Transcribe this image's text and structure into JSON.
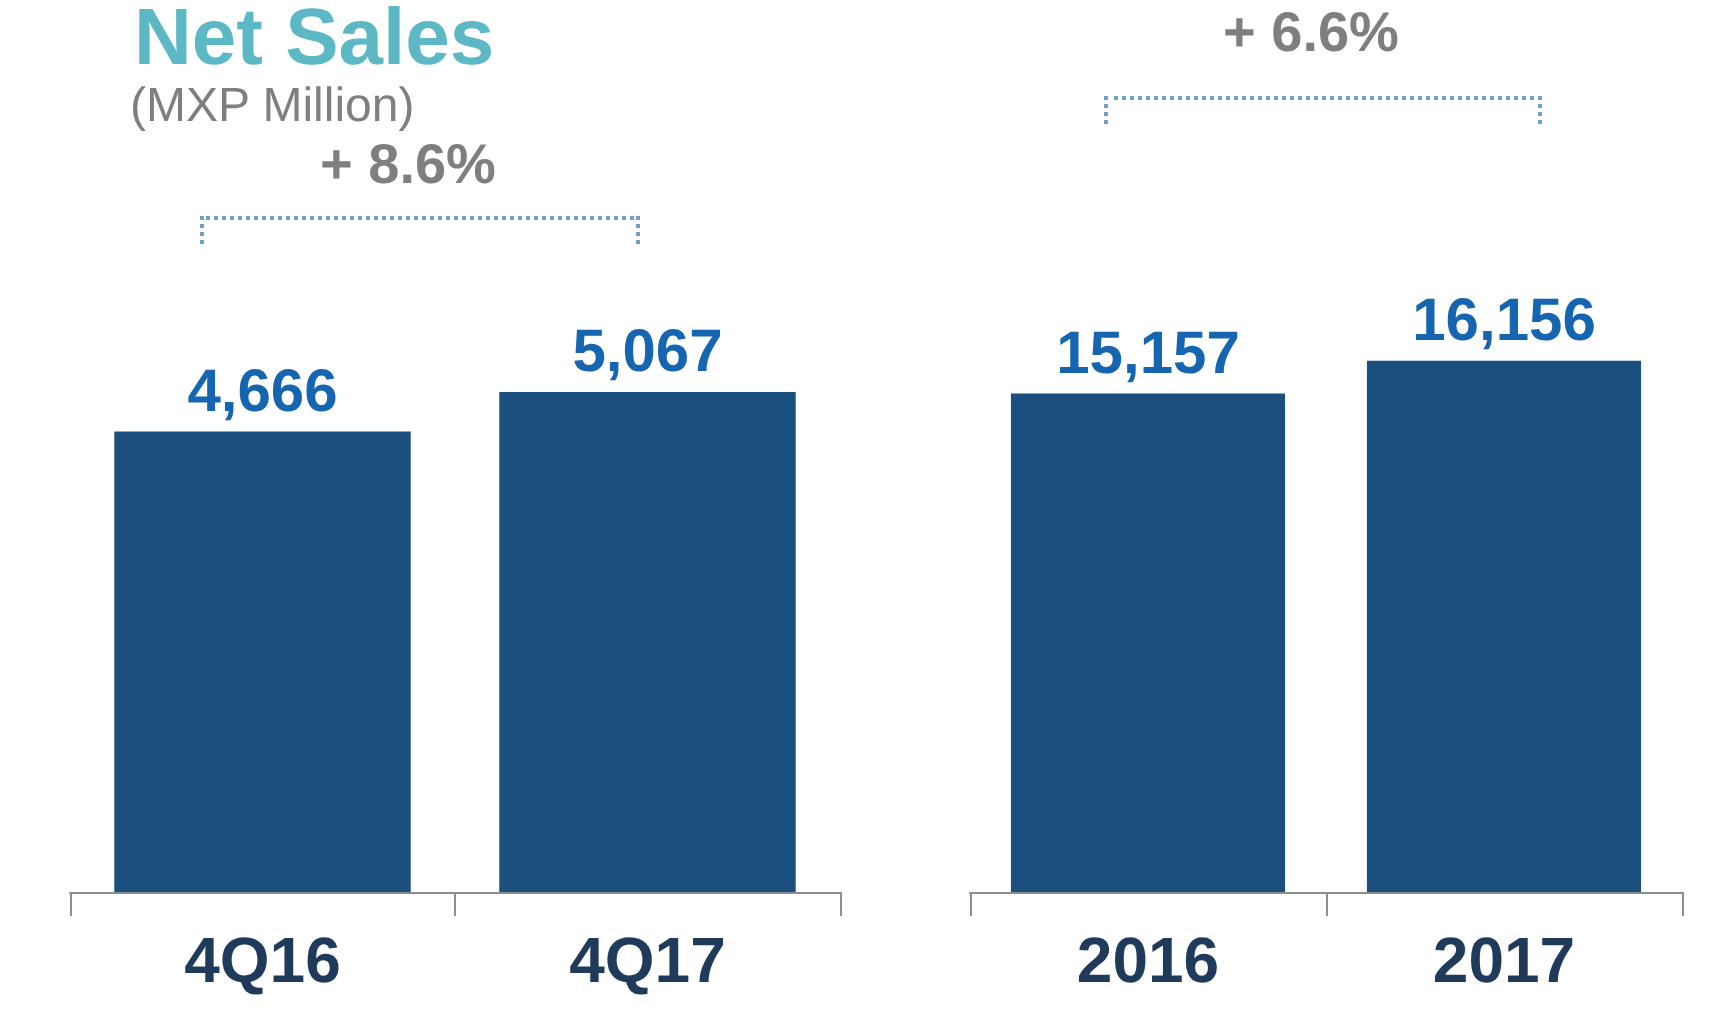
{
  "chart_data": [
    {
      "type": "bar",
      "title": "Net Sales",
      "subtitle": "(MXP Million)",
      "categories": [
        "4Q16",
        "4Q17"
      ],
      "values": [
        4666,
        5067
      ],
      "value_labels": [
        "4,666",
        "5,067"
      ],
      "color": "#1b4f7e",
      "annotations": [
        "+ 8.6%"
      ]
    },
    {
      "type": "bar",
      "categories": [
        "2016",
        "2017"
      ],
      "values": [
        15157,
        16156
      ],
      "value_labels": [
        "15,157",
        "16,156"
      ],
      "color": "#1b4f7e",
      "annotations": [
        "+ 6.6%"
      ]
    }
  ]
}
